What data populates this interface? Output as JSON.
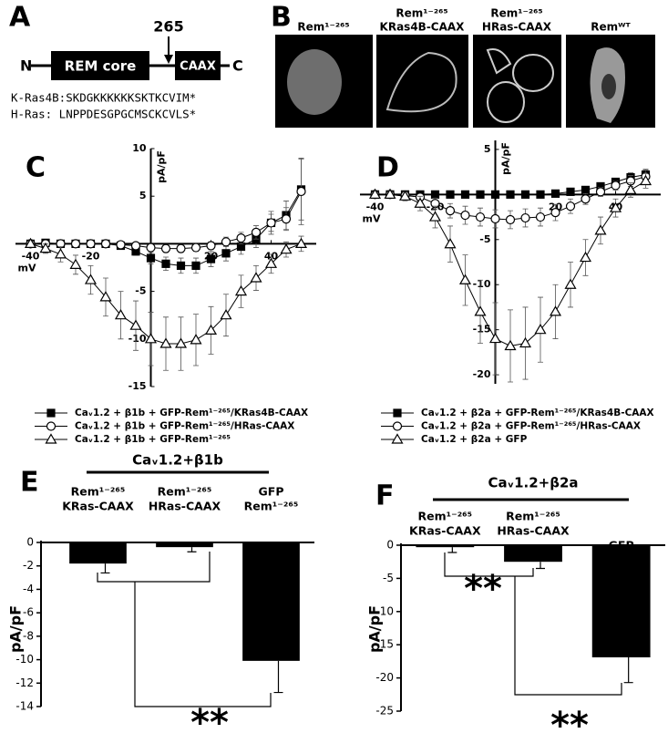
{
  "panel_a": {
    "label": "A",
    "n_term": "N",
    "domain": "REM core",
    "caax": "CAAX",
    "c_term": "C",
    "site": "265",
    "sequences": [
      "K-Ras4B:SKDGKKKKKKSKTKCVIM*",
      "H-Ras: LNPPDESGPGCMSCKCVLS*"
    ]
  },
  "panel_b": {
    "label": "B",
    "images": [
      [
        "Rem¹⁻²⁶⁵"
      ],
      [
        "Rem¹⁻²⁶⁵",
        "KRas4B-CAAX"
      ],
      [
        "Rem¹⁻²⁶⁵",
        "HRas-CAAX"
      ],
      [
        "Remᵂᵀ"
      ]
    ]
  },
  "chart_data": [
    {
      "type": "line",
      "label": "C",
      "y_label": "pA/pF",
      "x_label": "mV",
      "xlim": [
        -45,
        55
      ],
      "ylim": [
        -15,
        10
      ],
      "xticks": [
        -40,
        -20,
        20,
        40
      ],
      "yticks": [
        10,
        5,
        -5,
        -10,
        -15
      ],
      "x": [
        -40,
        -35,
        -30,
        -25,
        -20,
        -15,
        -10,
        -5,
        0,
        5,
        10,
        15,
        20,
        25,
        30,
        35,
        40,
        45,
        50
      ],
      "series": [
        {
          "name": "Caᵥ1.2 + β1b + GFP-Rem¹⁻²⁶⁵/KRas4B-CAAX",
          "color": "#000000",
          "marker": "square",
          "values": [
            0,
            0.1,
            0,
            0,
            0,
            0,
            -0.2,
            -0.8,
            -1.5,
            -2.1,
            -2.3,
            -2.3,
            -1.6,
            -1.0,
            -0.3,
            0.5,
            2.2,
            3.0,
            5.7
          ],
          "errors": [
            0.2,
            0.2,
            0.2,
            0.2,
            0.2,
            0.3,
            0.3,
            0.4,
            0.6,
            0.7,
            0.8,
            0.8,
            0.8,
            0.8,
            0.8,
            0.9,
            1.2,
            1.5,
            3.2
          ]
        },
        {
          "name": "Caᵥ1.2 + β1b + GFP-Rem¹⁻²⁶⁵/HRas-CAAX",
          "color": "#000000",
          "marker": "circle",
          "values": [
            0,
            0,
            0,
            0,
            0,
            0,
            -0.1,
            -0.2,
            -0.4,
            -0.5,
            -0.5,
            -0.4,
            -0.2,
            0.2,
            0.6,
            1.2,
            2.2,
            2.6,
            5.5
          ],
          "errors": [
            0.2,
            0.2,
            0.2,
            0.2,
            0.2,
            0.2,
            0.3,
            0.3,
            0.3,
            0.4,
            0.4,
            0.4,
            0.4,
            0.5,
            0.6,
            0.7,
            0.9,
            1.2,
            3.5
          ]
        },
        {
          "name": "Caᵥ1.2 + β1b + GFP-Rem¹⁻²⁶⁵",
          "color": "#000000",
          "marker": "triangle",
          "values": [
            0,
            -0.5,
            -1.1,
            -2.2,
            -3.8,
            -5.6,
            -7.5,
            -8.6,
            -10.0,
            -10.5,
            -10.5,
            -10.1,
            -9.1,
            -7.5,
            -5.0,
            -3.6,
            -2.1,
            -0.6,
            0
          ],
          "errors": [
            0.3,
            0.5,
            0.8,
            1.0,
            1.5,
            2.0,
            2.5,
            2.6,
            2.8,
            2.8,
            2.8,
            2.7,
            2.5,
            2.2,
            1.7,
            1.3,
            1.0,
            0.8,
            0.8
          ]
        }
      ]
    },
    {
      "type": "line",
      "label": "D",
      "y_label": "pA/pF",
      "x_label": "mV",
      "xlim": [
        -45,
        55
      ],
      "ylim": [
        -21,
        6
      ],
      "xticks": [
        -40,
        -20,
        20,
        40
      ],
      "yticks": [
        5,
        -5,
        -10,
        -15,
        -20
      ],
      "x": [
        -40,
        -35,
        -30,
        -25,
        -20,
        -15,
        -10,
        -5,
        0,
        5,
        10,
        15,
        20,
        25,
        30,
        35,
        40,
        45,
        50
      ],
      "series": [
        {
          "name": "Caᵥ1.2 + β2a + GFP-Rem¹⁻²⁶⁵/KRas4B-CAAX",
          "color": "#000000",
          "marker": "square",
          "values": [
            0,
            0,
            0,
            0,
            0,
            0,
            0,
            0,
            0,
            0,
            0,
            0,
            0.1,
            0.3,
            0.5,
            0.9,
            1.4,
            1.9,
            2.2
          ],
          "errors": [
            0.2,
            0.2,
            0.2,
            0.2,
            0.2,
            0.2,
            0.2,
            0.2,
            0.2,
            0.2,
            0.2,
            0.2,
            0.2,
            0.2,
            0.3,
            0.3,
            0.4,
            0.5,
            0.6
          ]
        },
        {
          "name": "Caᵥ1.2 + β2a + GFP-Rem¹⁻²⁶⁵/HRas-CAAX",
          "color": "#000000",
          "marker": "circle",
          "values": [
            0,
            0,
            -0.1,
            -0.3,
            -1.0,
            -1.8,
            -2.3,
            -2.5,
            -2.7,
            -2.8,
            -2.6,
            -2.5,
            -2.0,
            -1.3,
            -0.5,
            0.3,
            1.0,
            1.5,
            2.0
          ],
          "errors": [
            0.2,
            0.2,
            0.3,
            0.4,
            0.6,
            0.8,
            1.0,
            1.0,
            1.0,
            1.0,
            1.0,
            1.0,
            0.9,
            0.8,
            0.6,
            0.5,
            0.5,
            0.6,
            0.7
          ]
        },
        {
          "name": "Caᵥ1.2 + β2a + GFP",
          "color": "#000000",
          "marker": "triangle",
          "values": [
            0,
            0,
            -0.2,
            -1.0,
            -2.5,
            -5.5,
            -9.5,
            -13.0,
            -16.0,
            -16.8,
            -16.5,
            -15.0,
            -13.0,
            -10.0,
            -7.0,
            -4.0,
            -1.5,
            0.5,
            1.5
          ],
          "errors": [
            0.2,
            0.3,
            0.5,
            0.8,
            1.2,
            2.0,
            2.8,
            3.5,
            4.0,
            4.0,
            4.0,
            3.6,
            3.0,
            2.5,
            2.0,
            1.5,
            1.0,
            0.8,
            0.8
          ]
        }
      ]
    },
    {
      "type": "bar",
      "label": "E",
      "group": "Caᵥ1.2+β1b",
      "y_label": "pA/pF",
      "ylim": [
        -14,
        0
      ],
      "yticks": [
        0,
        -2,
        -4,
        -6,
        -8,
        -10,
        -12,
        -14
      ],
      "color": "#000000",
      "categories": [
        [
          "Rem¹⁻²⁶⁵",
          "KRas-CAAX"
        ],
        [
          "Rem¹⁻²⁶⁵",
          "HRas-CAAX"
        ],
        [
          "GFP",
          "Rem¹⁻²⁶⁵"
        ]
      ],
      "values": [
        -1.8,
        -0.4,
        -10.1
      ],
      "errors": [
        0.8,
        0.4,
        2.7
      ],
      "annotations": [
        "**"
      ]
    },
    {
      "type": "bar",
      "label": "F",
      "group": "Caᵥ1.2+β2a",
      "y_label": "pA/pF",
      "ylim": [
        -25,
        0
      ],
      "yticks": [
        0,
        -5,
        -10,
        -15,
        -20,
        -25
      ],
      "color": "#000000",
      "categories": [
        [
          "Rem¹⁻²⁶⁵",
          "KRas-CAAX"
        ],
        [
          "Rem¹⁻²⁶⁵",
          "HRas-CAAX"
        ],
        [
          "GFP"
        ]
      ],
      "values": [
        -0.3,
        -2.5,
        -16.9
      ],
      "errors": [
        0.8,
        1.0,
        3.8
      ],
      "annotations": [
        "**",
        "**"
      ]
    }
  ]
}
